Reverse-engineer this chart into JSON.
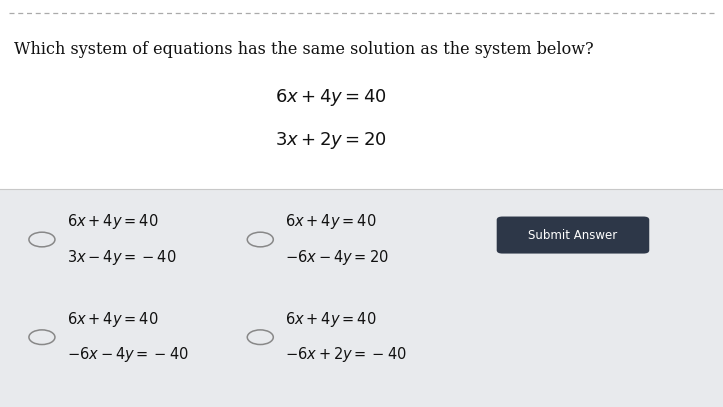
{
  "bg_top": "#ffffff",
  "bg_bottom": "#e8eaed",
  "dashed_border_color": "#aaaaaa",
  "question": "Which system of equations has the same solution as the system below?",
  "question_fontsize": 11.5,
  "system_line1": "$6x + 4y = 40$",
  "system_line2": "$3x + 2y = 20$",
  "system_fontsize": 13,
  "options": [
    {
      "line1": "$6x + 4y = 40$",
      "line2": "$3x - 4y = -40$"
    },
    {
      "line1": "$6x + 4y = 40$",
      "line2": "$-6x - 4y = 20$"
    },
    {
      "line1": "$6x + 4y = 40$",
      "line2": "$-6x - 4y = -40$"
    },
    {
      "line1": "$6x + 4y = 40$",
      "line2": "$-6x + 2y = -40$"
    }
  ],
  "option_fontsize": 10.5,
  "radio_color": "#888888",
  "submit_label": "Submit Answer",
  "submit_bg": "#2d3748",
  "submit_fg": "#ffffff",
  "submit_fontsize": 8.5,
  "fig_width": 7.23,
  "fig_height": 4.07,
  "dpi": 100
}
